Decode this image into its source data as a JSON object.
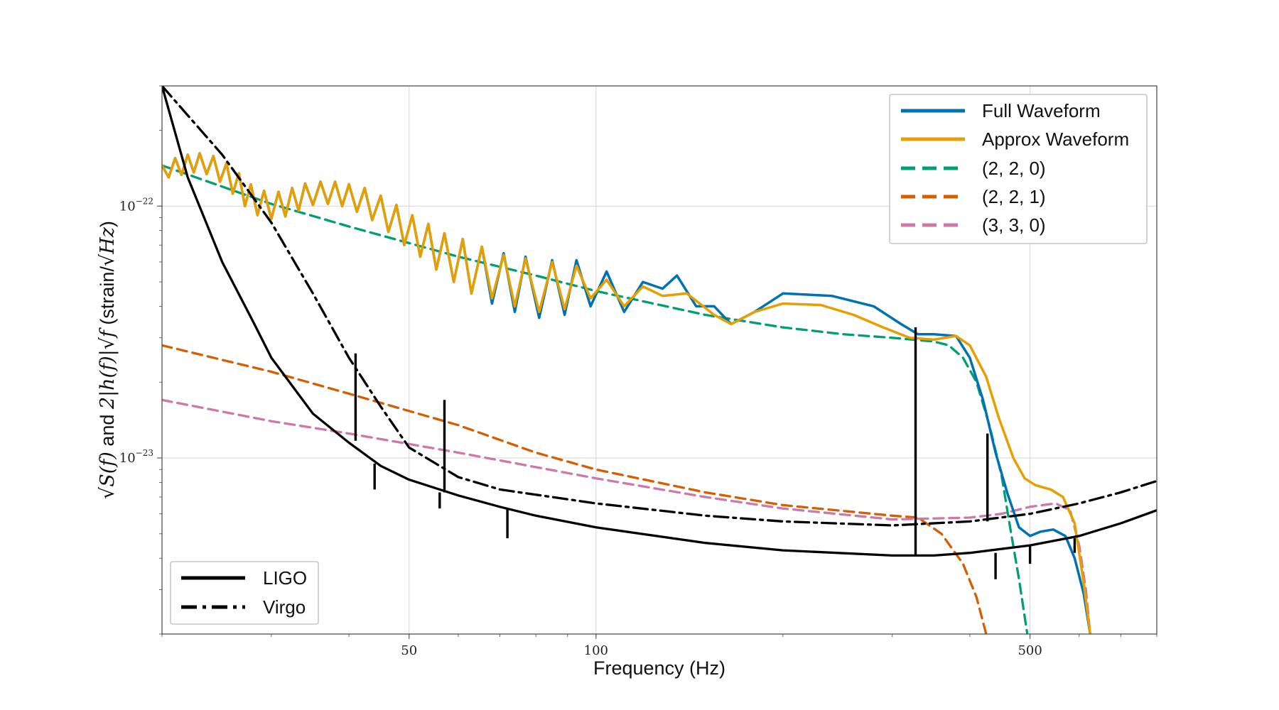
{
  "chart_data": {
    "type": "line",
    "xscale": "log",
    "yscale": "log",
    "xlabel": "Frequency (Hz)",
    "ylabel_parts": [
      "√S(f)",
      " and ",
      "2|h(f)|√f",
      " (strain/",
      "√Hz",
      ")"
    ],
    "xlim": [
      20,
      800
    ],
    "ylim": [
      2e-24,
      3e-22
    ],
    "grid": true,
    "x_ticks": [
      {
        "value": 50,
        "label": "50"
      },
      {
        "value": 100,
        "label": "100"
      },
      {
        "value": 500,
        "label": "500"
      }
    ],
    "y_ticks": [
      {
        "value": 1e-23,
        "base": "10",
        "exp": "−23"
      },
      {
        "value": 1e-22,
        "base": "10",
        "exp": "−22"
      }
    ],
    "series": [
      {
        "name": "LIGO",
        "key": "ligo",
        "legend": "lower-left",
        "color": "#000000",
        "style": "solid",
        "points": [
          [
            20,
            3e-22
          ],
          [
            22,
            1.3e-22
          ],
          [
            25,
            6e-23
          ],
          [
            28,
            3.5e-23
          ],
          [
            30,
            2.5e-23
          ],
          [
            35,
            1.5e-23
          ],
          [
            40,
            1.15e-23
          ],
          [
            45,
            9.3e-24
          ],
          [
            50,
            8.2e-24
          ],
          [
            60,
            7.1e-24
          ],
          [
            70,
            6.4e-24
          ],
          [
            80,
            5.9e-24
          ],
          [
            100,
            5.3e-24
          ],
          [
            150,
            4.6e-24
          ],
          [
            200,
            4.3e-24
          ],
          [
            300,
            4.1e-24
          ],
          [
            350,
            4.1e-24
          ],
          [
            400,
            4.2e-24
          ],
          [
            500,
            4.5e-24
          ],
          [
            600,
            4.9e-24
          ],
          [
            700,
            5.5e-24
          ],
          [
            800,
            6.2e-24
          ]
        ],
        "lines": [
          [
            41,
            1.17e-23,
            2.6e-23
          ],
          [
            44,
            9.5e-24,
            7.5e-24
          ],
          [
            57,
            7.3e-24,
            1.7e-23
          ],
          [
            56,
            7.3e-24,
            6.3e-24
          ],
          [
            72,
            6.3e-24,
            4.8e-24
          ],
          [
            327,
            4.1e-24,
            3.3e-23
          ],
          [
            500,
            4.5e-24,
            3.8e-24
          ],
          [
            440,
            4.2e-24,
            3.3e-24
          ],
          [
            590,
            4.8e-24,
            4.2e-24
          ]
        ]
      },
      {
        "name": "Virgo",
        "key": "virgo",
        "legend": "lower-left",
        "color": "#000000",
        "style": "dashdot",
        "points": [
          [
            20,
            3e-22
          ],
          [
            25,
            1.6e-22
          ],
          [
            30,
            8.6e-23
          ],
          [
            35,
            4.5e-23
          ],
          [
            40,
            2.5e-23
          ],
          [
            45,
            1.6e-23
          ],
          [
            50,
            1.1e-23
          ],
          [
            60,
            8.4e-24
          ],
          [
            70,
            7.5e-24
          ],
          [
            100,
            6.6e-24
          ],
          [
            150,
            5.9e-24
          ],
          [
            200,
            5.6e-24
          ],
          [
            300,
            5.4e-24
          ],
          [
            400,
            5.6e-24
          ],
          [
            500,
            6e-24
          ],
          [
            600,
            6.6e-24
          ],
          [
            700,
            7.3e-24
          ],
          [
            800,
            8.1e-24
          ]
        ],
        "lines": [
          [
            427,
            5.6e-24,
            1.25e-23
          ]
        ]
      },
      {
        "name": "Full Waveform",
        "key": "full",
        "legend": "upper-right",
        "color": "#0072B2",
        "style": "solid",
        "width": 3.5,
        "points": [
          [
            20,
            1.45e-22
          ],
          [
            20.5,
            1.3e-22
          ],
          [
            21,
            1.55e-22
          ],
          [
            21.5,
            1.33e-22
          ],
          [
            22,
            1.6e-22
          ],
          [
            22.5,
            1.36e-22
          ],
          [
            23,
            1.62e-22
          ],
          [
            23.6,
            1.34e-22
          ],
          [
            24.2,
            1.58e-22
          ],
          [
            24.8,
            1.25e-22
          ],
          [
            25.4,
            1.48e-22
          ],
          [
            26,
            1.12e-22
          ],
          [
            26.6,
            1.35e-22
          ],
          [
            27.2,
            1e-22
          ],
          [
            27.8,
            1.22e-22
          ],
          [
            28.5,
            9.2e-23
          ],
          [
            29.2,
            1.15e-22
          ],
          [
            30,
            8.9e-23
          ],
          [
            30.8,
            1.14e-22
          ],
          [
            31.6,
            9.1e-23
          ],
          [
            32.4,
            1.18e-22
          ],
          [
            33.2,
            9.6e-23
          ],
          [
            34,
            1.23e-22
          ],
          [
            35,
            1.01e-22
          ],
          [
            36,
            1.25e-22
          ],
          [
            37,
            1.02e-22
          ],
          [
            38,
            1.25e-22
          ],
          [
            39,
            1e-22
          ],
          [
            40,
            1.22e-22
          ],
          [
            41.2,
            9.5e-23
          ],
          [
            42.4,
            1.18e-22
          ],
          [
            43.6,
            8.8e-23
          ],
          [
            45,
            1.1e-22
          ],
          [
            46.3,
            7.9e-23
          ],
          [
            47.7,
            1.01e-22
          ],
          [
            49.1,
            7e-23
          ],
          [
            50.6,
            9.2e-23
          ],
          [
            52.1,
            6.3e-23
          ],
          [
            53.7,
            8.5e-23
          ],
          [
            55.3,
            5.6e-23
          ],
          [
            57,
            7.8e-23
          ],
          [
            59,
            5e-23
          ],
          [
            61,
            7.4e-23
          ],
          [
            63,
            4.5e-23
          ],
          [
            65.5,
            6.9e-23
          ],
          [
            68,
            4.1e-23
          ],
          [
            71,
            6.5e-23
          ],
          [
            74,
            3.8e-23
          ],
          [
            77,
            6.3e-23
          ],
          [
            81,
            3.6e-23
          ],
          [
            85,
            6.1e-23
          ],
          [
            89,
            3.7e-23
          ],
          [
            93,
            6.1e-23
          ],
          [
            98,
            4e-23
          ],
          [
            104,
            5.5e-23
          ],
          [
            111,
            3.8e-23
          ],
          [
            119,
            5e-23
          ],
          [
            128,
            4.7e-23
          ],
          [
            135,
            5.3e-23
          ],
          [
            145,
            4e-23
          ],
          [
            155,
            4e-23
          ],
          [
            165,
            3.4e-23
          ],
          [
            180,
            3.8e-23
          ],
          [
            200,
            4.5e-23
          ],
          [
            240,
            4.4e-23
          ],
          [
            280,
            4e-23
          ],
          [
            310,
            3.4e-23
          ],
          [
            330,
            3.1e-23
          ],
          [
            350,
            3.1e-23
          ],
          [
            380,
            3.05e-23
          ],
          [
            400,
            2.5e-23
          ],
          [
            420,
            1.7e-23
          ],
          [
            440,
            1.05e-23
          ],
          [
            460,
            7.2e-24
          ],
          [
            480,
            5.3e-24
          ],
          [
            500,
            4.9e-24
          ],
          [
            520,
            5.1e-24
          ],
          [
            545,
            5.2e-24
          ],
          [
            570,
            4.9e-24
          ],
          [
            590,
            4e-24
          ],
          [
            610,
            2.9e-24
          ],
          [
            625,
            2e-24
          ]
        ]
      },
      {
        "name": "Approx Waveform",
        "key": "approx",
        "legend": "upper-right",
        "color": "#E69F00",
        "style": "solid",
        "width": 3.5,
        "points": [
          [
            20,
            1.45e-22
          ],
          [
            20.5,
            1.3e-22
          ],
          [
            21,
            1.55e-22
          ],
          [
            21.5,
            1.33e-22
          ],
          [
            22,
            1.6e-22
          ],
          [
            22.5,
            1.36e-22
          ],
          [
            23,
            1.62e-22
          ],
          [
            23.6,
            1.34e-22
          ],
          [
            24.2,
            1.58e-22
          ],
          [
            24.8,
            1.25e-22
          ],
          [
            25.4,
            1.48e-22
          ],
          [
            26,
            1.12e-22
          ],
          [
            26.6,
            1.35e-22
          ],
          [
            27.2,
            1e-22
          ],
          [
            27.8,
            1.22e-22
          ],
          [
            28.5,
            9.2e-23
          ],
          [
            29.2,
            1.15e-22
          ],
          [
            30,
            8.9e-23
          ],
          [
            30.8,
            1.14e-22
          ],
          [
            31.6,
            9.1e-23
          ],
          [
            32.4,
            1.18e-22
          ],
          [
            33.2,
            9.6e-23
          ],
          [
            34,
            1.23e-22
          ],
          [
            35,
            1.01e-22
          ],
          [
            36,
            1.25e-22
          ],
          [
            37,
            1.02e-22
          ],
          [
            38,
            1.25e-22
          ],
          [
            39,
            1e-22
          ],
          [
            40,
            1.22e-22
          ],
          [
            41.2,
            9.5e-23
          ],
          [
            42.4,
            1.18e-22
          ],
          [
            43.6,
            8.8e-23
          ],
          [
            45,
            1.1e-22
          ],
          [
            46.3,
            7.9e-23
          ],
          [
            47.7,
            1.01e-22
          ],
          [
            49.1,
            7e-23
          ],
          [
            50.6,
            9.2e-23
          ],
          [
            52.1,
            6.3e-23
          ],
          [
            53.7,
            8.5e-23
          ],
          [
            55.3,
            5.6e-23
          ],
          [
            57,
            7.8e-23
          ],
          [
            59,
            5e-23
          ],
          [
            61,
            7.4e-23
          ],
          [
            63,
            4.5e-23
          ],
          [
            65.5,
            6.9e-23
          ],
          [
            68,
            4.3e-23
          ],
          [
            71,
            6.4e-23
          ],
          [
            74,
            4e-23
          ],
          [
            77,
            6.2e-23
          ],
          [
            81,
            3.8e-23
          ],
          [
            85,
            6e-23
          ],
          [
            89,
            3.9e-23
          ],
          [
            93,
            5.8e-23
          ],
          [
            98,
            4.3e-23
          ],
          [
            104,
            5.1e-23
          ],
          [
            111,
            4e-23
          ],
          [
            119,
            4.8e-23
          ],
          [
            128,
            4.4e-23
          ],
          [
            140,
            4.5e-23
          ],
          [
            155,
            3.7e-23
          ],
          [
            165,
            3.4e-23
          ],
          [
            180,
            3.8e-23
          ],
          [
            200,
            4.1e-23
          ],
          [
            230,
            4.05e-23
          ],
          [
            260,
            3.7e-23
          ],
          [
            290,
            3.3e-23
          ],
          [
            320,
            3e-23
          ],
          [
            350,
            2.95e-23
          ],
          [
            380,
            3.05e-23
          ],
          [
            400,
            2.8e-23
          ],
          [
            425,
            2.1e-23
          ],
          [
            445,
            1.45e-23
          ],
          [
            470,
            1e-23
          ],
          [
            490,
            8.3e-24
          ],
          [
            510,
            7.8e-24
          ],
          [
            540,
            7.5e-24
          ],
          [
            565,
            7e-24
          ],
          [
            590,
            5.5e-24
          ],
          [
            610,
            3.2e-24
          ],
          [
            625,
            2e-24
          ]
        ]
      },
      {
        "name": "(2, 2, 0)",
        "key": "m220",
        "legend": "upper-right",
        "color": "#009E73",
        "style": "dashed",
        "points": [
          [
            20,
            1.45e-22
          ],
          [
            30,
            1.02e-22
          ],
          [
            40,
            8.3e-23
          ],
          [
            60,
            6.3e-23
          ],
          [
            80,
            5.3e-23
          ],
          [
            100,
            4.6e-23
          ],
          [
            150,
            3.7e-23
          ],
          [
            200,
            3.3e-23
          ],
          [
            250,
            3.1e-23
          ],
          [
            300,
            3e-23
          ],
          [
            350,
            2.9e-23
          ],
          [
            370,
            2.8e-23
          ],
          [
            390,
            2.5e-23
          ],
          [
            410,
            2e-23
          ],
          [
            430,
            1.35e-23
          ],
          [
            450,
            8.5e-24
          ],
          [
            465,
            5.2e-24
          ],
          [
            480,
            3.3e-24
          ],
          [
            495,
            2e-24
          ]
        ]
      },
      {
        "name": "(2, 2, 1)",
        "key": "m221",
        "legend": "upper-right",
        "color": "#D55E00",
        "style": "dashed",
        "points": [
          [
            20,
            2.8e-23
          ],
          [
            30,
            2.2e-23
          ],
          [
            40,
            1.8e-23
          ],
          [
            60,
            1.35e-23
          ],
          [
            80,
            1.05e-23
          ],
          [
            100,
            9e-24
          ],
          [
            150,
            7.3e-24
          ],
          [
            200,
            6.5e-24
          ],
          [
            300,
            5.9e-24
          ],
          [
            330,
            5.8e-24
          ],
          [
            360,
            5e-24
          ],
          [
            390,
            3.8e-24
          ],
          [
            410,
            2.8e-24
          ],
          [
            425,
            2e-24
          ]
        ]
      },
      {
        "name": "(3, 3, 0)",
        "key": "m330",
        "legend": "upper-right",
        "color": "#CC79A7",
        "style": "dashed",
        "points": [
          [
            20,
            1.7e-23
          ],
          [
            30,
            1.4e-23
          ],
          [
            40,
            1.25e-23
          ],
          [
            60,
            1.05e-23
          ],
          [
            80,
            9.2e-24
          ],
          [
            100,
            8.3e-24
          ],
          [
            150,
            7e-24
          ],
          [
            200,
            6.3e-24
          ],
          [
            300,
            5.7e-24
          ],
          [
            400,
            5.8e-24
          ],
          [
            450,
            6e-24
          ],
          [
            500,
            6.4e-24
          ],
          [
            550,
            6.6e-24
          ],
          [
            580,
            6.2e-24
          ],
          [
            600,
            4.5e-24
          ],
          [
            615,
            3e-24
          ],
          [
            625,
            2e-24
          ]
        ]
      }
    ]
  }
}
